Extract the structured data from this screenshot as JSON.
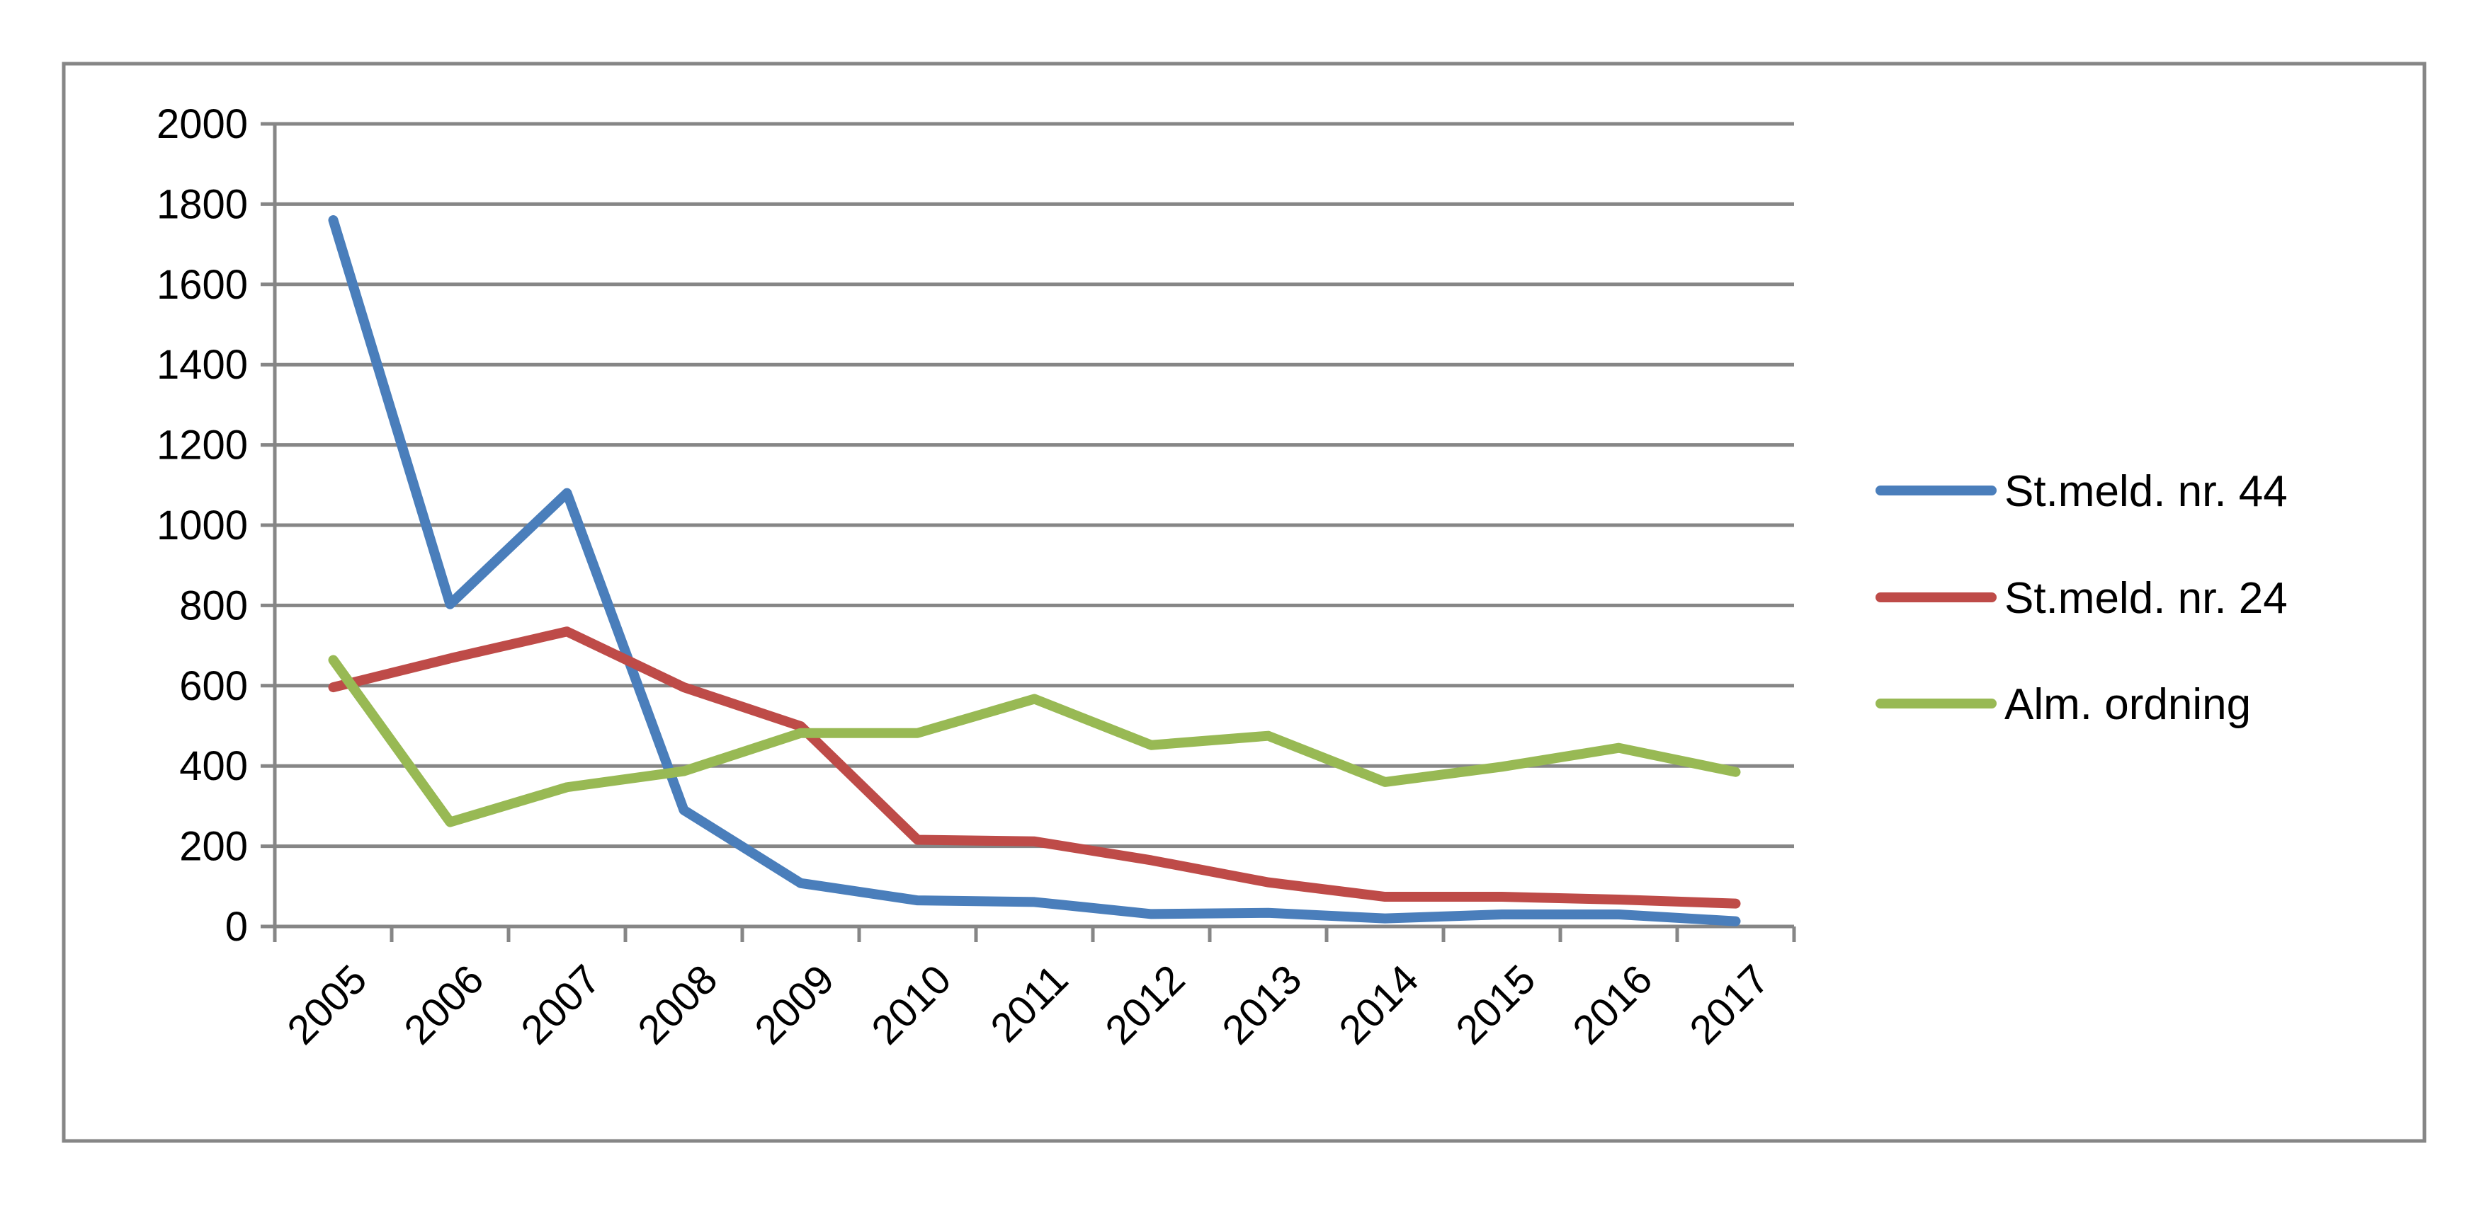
{
  "chart_data": {
    "type": "line",
    "title": "",
    "xlabel": "",
    "ylabel": "",
    "categories": [
      "2005",
      "2006",
      "2007",
      "2008",
      "2009",
      "2010",
      "2011",
      "2012",
      "2013",
      "2014",
      "2015",
      "2016",
      "2017"
    ],
    "ylim": [
      0,
      2000
    ],
    "yticks": [
      0,
      200,
      400,
      600,
      800,
      1000,
      1200,
      1400,
      1600,
      1800,
      2000
    ],
    "grid": true,
    "legend_position": "right",
    "series": [
      {
        "name": "St.meld. nr. 44",
        "color": "#4a7ebb",
        "values": [
          1760,
          803,
          1080,
          290,
          108,
          65,
          61,
          31,
          34,
          20,
          30,
          30,
          13
        ]
      },
      {
        "name": "St.meld. nr. 24",
        "color": "#be4b48",
        "values": [
          596,
          668,
          735,
          596,
          499,
          216,
          212,
          165,
          110,
          74,
          74,
          67,
          57
        ]
      },
      {
        "name": "Alm. ordning",
        "color": "#98b954",
        "values": [
          664,
          260,
          347,
          387,
          482,
          482,
          567,
          452,
          475,
          360,
          398,
          445,
          385
        ]
      }
    ]
  }
}
